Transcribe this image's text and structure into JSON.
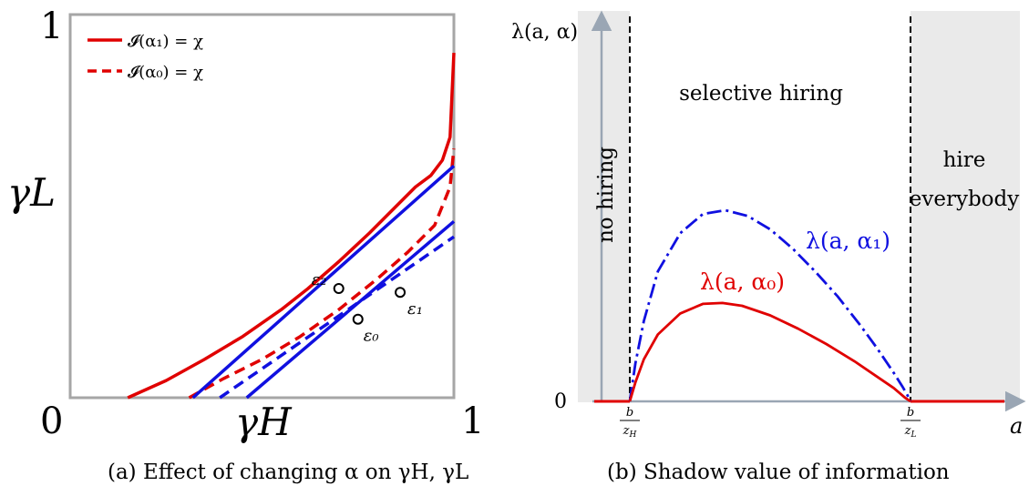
{
  "chart_data": [
    {
      "type": "line",
      "caption": "(a) Effect of changing α on γH, γL",
      "xlabel": "γH",
      "ylabel": "γL",
      "xlim": [
        0,
        1
      ],
      "ylim": [
        0,
        1
      ],
      "tick_labels": {
        "origin": "0",
        "x_max": "1",
        "y_max": "1"
      },
      "legend": {
        "placement": "top-left",
        "entries": [
          {
            "label": "𝓘(α₁) = χ",
            "style": "solid",
            "color": "#e00000"
          },
          {
            "label": "𝓘(α₀) = χ",
            "style": "dashed",
            "color": "#e00000"
          }
        ]
      },
      "series": [
        {
          "kind": "curve",
          "style": "solid",
          "color": "#e00000",
          "x": [
            0.15,
            0.25,
            0.35,
            0.45,
            0.55,
            0.62,
            0.7,
            0.78,
            0.85,
            0.9,
            0.94,
            0.97,
            0.99,
            1.0
          ],
          "y": [
            0.0,
            0.045,
            0.1,
            0.16,
            0.23,
            0.285,
            0.355,
            0.43,
            0.5,
            0.55,
            0.58,
            0.62,
            0.68,
            0.9
          ]
        },
        {
          "kind": "curve",
          "style": "dashed",
          "color": "#e00000",
          "x": [
            0.31,
            0.4,
            0.5,
            0.6,
            0.7,
            0.8,
            0.88,
            0.95,
            0.99,
            1.0
          ],
          "y": [
            0.0,
            0.05,
            0.1,
            0.16,
            0.23,
            0.31,
            0.38,
            0.45,
            0.55,
            0.65
          ]
        },
        {
          "kind": "line",
          "style": "solid",
          "color": "#1010e0",
          "x": [
            0.32,
            1.0
          ],
          "y": [
            0.0,
            0.605
          ]
        },
        {
          "kind": "line",
          "style": "solid",
          "color": "#1010e0",
          "x": [
            0.46,
            1.0
          ],
          "y": [
            0.0,
            0.46
          ]
        },
        {
          "kind": "line",
          "style": "dashed",
          "color": "#1010e0",
          "x": [
            0.39,
            1.0
          ],
          "y": [
            0.0,
            0.42
          ]
        }
      ],
      "points": [
        {
          "label": "ε₂",
          "x": 0.7,
          "y": 0.285
        },
        {
          "label": "ε₁",
          "x": 0.86,
          "y": 0.275
        },
        {
          "label": "ε₀",
          "x": 0.75,
          "y": 0.205
        }
      ]
    },
    {
      "type": "line",
      "caption": "(b) Shadow value of information",
      "xlabel": "a",
      "ylabel": "λ(a, α)",
      "x_tick_labels": [
        "b/zH",
        "b/zL"
      ],
      "y_tick_labels": [
        "0"
      ],
      "regions": [
        {
          "label": "no hiring",
          "shaded": true,
          "from": "0",
          "to": "b/zH"
        },
        {
          "label": "selective hiring",
          "shaded": false,
          "from": "b/zH",
          "to": "b/zL"
        },
        {
          "label": "hire everybody",
          "shaded": true,
          "from": "b/zL",
          "to": "∞"
        }
      ],
      "series": [
        {
          "name": "λ(a, α₁)",
          "style": "dashed",
          "color": "#1010e0",
          "x": [
            0.0,
            0.02,
            0.05,
            0.1,
            0.18,
            0.26,
            0.34,
            0.42,
            0.5,
            0.58,
            0.66,
            0.74,
            0.82,
            0.88,
            0.94,
            0.97,
            0.99,
            1.0
          ],
          "y": [
            0.0,
            0.2,
            0.42,
            0.68,
            0.88,
            0.98,
            1.0,
            0.97,
            0.9,
            0.8,
            0.68,
            0.55,
            0.4,
            0.28,
            0.15,
            0.08,
            0.03,
            0.0
          ]
        },
        {
          "name": "λ(a, α₀)",
          "style": "solid",
          "color": "#e00000",
          "x": [
            0.0,
            0.02,
            0.05,
            0.1,
            0.18,
            0.26,
            0.33,
            0.4,
            0.5,
            0.6,
            0.7,
            0.8,
            0.88,
            0.94,
            0.98,
            1.0
          ],
          "y": [
            0.0,
            0.1,
            0.22,
            0.35,
            0.46,
            0.51,
            0.515,
            0.5,
            0.45,
            0.38,
            0.3,
            0.21,
            0.13,
            0.07,
            0.02,
            0.0
          ]
        }
      ]
    }
  ]
}
